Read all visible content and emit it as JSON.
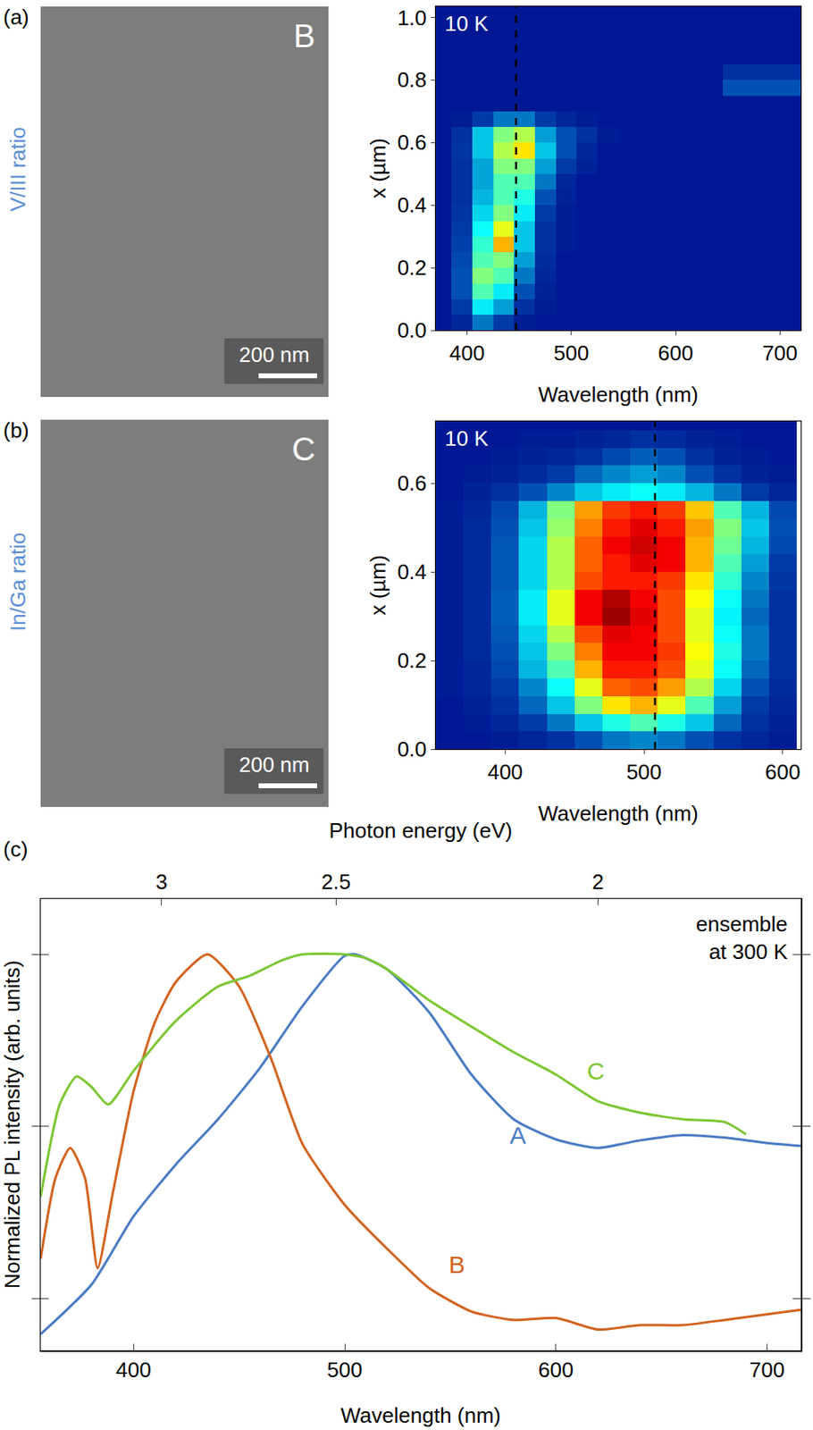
{
  "chart_data": [
    {
      "type": "heatmap",
      "panel": "(a)",
      "row_label": "V/III ratio",
      "image": {
        "label": "B",
        "scale_bar": "200 nm"
      },
      "annotation": "10 K",
      "xlabel": "Wavelength (nm)",
      "ylabel": "x (µm)",
      "xlim": [
        370,
        720
      ],
      "ylim": [
        0,
        1.035
      ],
      "xticks": [
        400,
        500,
        600,
        700
      ],
      "yticks": [
        {
          "value": 0,
          "label": "0.0"
        },
        {
          "value": 0.2,
          "label": "0.2"
        },
        {
          "value": 0.4,
          "label": "0.4"
        },
        {
          "value": 0.6,
          "label": "0.6"
        },
        {
          "value": 0.8,
          "label": "0.8"
        },
        {
          "value": 1,
          "label": "1.0"
        }
      ],
      "grid": false,
      "reference_line": {
        "x": 447,
        "line_style": "dashed"
      },
      "zlim": [
        0,
        1
      ],
      "x": [
        375,
        395,
        415,
        435,
        455,
        475,
        495,
        515,
        535,
        555,
        575,
        595,
        615,
        635,
        655,
        675,
        695,
        715
      ],
      "y": [
        0.025,
        0.075,
        0.125,
        0.175,
        0.225,
        0.275,
        0.325,
        0.375,
        0.425,
        0.475,
        0.525,
        0.575,
        0.625,
        0.675,
        0.725,
        0.775,
        0.825,
        0.875,
        0.925,
        0.975,
        1.025
      ],
      "z": [
        [
          0.05,
          0.08,
          0.2,
          0.12,
          0.06,
          0.05,
          0.05,
          0.05,
          0.05,
          0.05,
          0.05,
          0.05,
          0.05,
          0.05,
          0.05,
          0.05,
          0.05,
          0.05
        ],
        [
          0.05,
          0.12,
          0.35,
          0.25,
          0.1,
          0.06,
          0.05,
          0.05,
          0.05,
          0.05,
          0.05,
          0.05,
          0.05,
          0.05,
          0.05,
          0.05,
          0.05,
          0.05
        ],
        [
          0.05,
          0.15,
          0.45,
          0.35,
          0.15,
          0.07,
          0.05,
          0.05,
          0.05,
          0.05,
          0.05,
          0.05,
          0.05,
          0.05,
          0.05,
          0.05,
          0.05,
          0.05
        ],
        [
          0.05,
          0.15,
          0.5,
          0.45,
          0.2,
          0.08,
          0.05,
          0.05,
          0.05,
          0.05,
          0.05,
          0.05,
          0.05,
          0.05,
          0.05,
          0.05,
          0.05,
          0.05
        ],
        [
          0.05,
          0.14,
          0.45,
          0.5,
          0.25,
          0.09,
          0.05,
          0.05,
          0.05,
          0.05,
          0.05,
          0.05,
          0.05,
          0.05,
          0.05,
          0.05,
          0.05,
          0.05
        ],
        [
          0.05,
          0.13,
          0.42,
          0.7,
          0.3,
          0.1,
          0.06,
          0.05,
          0.05,
          0.05,
          0.05,
          0.05,
          0.05,
          0.05,
          0.05,
          0.05,
          0.05,
          0.05
        ],
        [
          0.05,
          0.12,
          0.38,
          0.6,
          0.3,
          0.1,
          0.06,
          0.05,
          0.05,
          0.05,
          0.05,
          0.05,
          0.05,
          0.05,
          0.05,
          0.05,
          0.05,
          0.05
        ],
        [
          0.05,
          0.11,
          0.32,
          0.5,
          0.35,
          0.12,
          0.06,
          0.05,
          0.05,
          0.05,
          0.05,
          0.05,
          0.05,
          0.05,
          0.05,
          0.05,
          0.05,
          0.05
        ],
        [
          0.05,
          0.1,
          0.28,
          0.45,
          0.4,
          0.15,
          0.07,
          0.05,
          0.05,
          0.05,
          0.05,
          0.05,
          0.05,
          0.05,
          0.05,
          0.05,
          0.05,
          0.05
        ],
        [
          0.05,
          0.1,
          0.26,
          0.45,
          0.45,
          0.2,
          0.08,
          0.05,
          0.05,
          0.05,
          0.05,
          0.05,
          0.05,
          0.05,
          0.05,
          0.05,
          0.05,
          0.05
        ],
        [
          0.05,
          0.1,
          0.26,
          0.5,
          0.5,
          0.25,
          0.12,
          0.07,
          0.05,
          0.05,
          0.05,
          0.05,
          0.05,
          0.05,
          0.05,
          0.05,
          0.05,
          0.05
        ],
        [
          0.05,
          0.11,
          0.3,
          0.55,
          0.65,
          0.3,
          0.15,
          0.08,
          0.05,
          0.05,
          0.05,
          0.05,
          0.05,
          0.05,
          0.05,
          0.05,
          0.05,
          0.05
        ],
        [
          0.05,
          0.1,
          0.3,
          0.5,
          0.55,
          0.25,
          0.15,
          0.1,
          0.06,
          0.05,
          0.05,
          0.05,
          0.05,
          0.05,
          0.05,
          0.05,
          0.05,
          0.05
        ],
        [
          0.05,
          0.06,
          0.12,
          0.2,
          0.2,
          0.12,
          0.08,
          0.06,
          0.05,
          0.05,
          0.05,
          0.05,
          0.05,
          0.05,
          0.05,
          0.05,
          0.05,
          0.05
        ],
        [
          0.05,
          0.05,
          0.05,
          0.05,
          0.05,
          0.05,
          0.05,
          0.05,
          0.05,
          0.05,
          0.05,
          0.05,
          0.05,
          0.05,
          0.05,
          0.05,
          0.05,
          0.05
        ],
        [
          0.05,
          0.05,
          0.05,
          0.05,
          0.05,
          0.05,
          0.05,
          0.05,
          0.05,
          0.05,
          0.05,
          0.05,
          0.05,
          0.05,
          0.15,
          0.15,
          0.15,
          0.15
        ],
        [
          0.05,
          0.05,
          0.05,
          0.05,
          0.05,
          0.05,
          0.05,
          0.05,
          0.05,
          0.05,
          0.05,
          0.05,
          0.05,
          0.05,
          0.1,
          0.1,
          0.1,
          0.1
        ],
        [
          0.05,
          0.05,
          0.05,
          0.05,
          0.05,
          0.05,
          0.05,
          0.05,
          0.05,
          0.05,
          0.05,
          0.05,
          0.05,
          0.05,
          0.05,
          0.05,
          0.05,
          0.05
        ],
        [
          0.05,
          0.05,
          0.05,
          0.05,
          0.05,
          0.05,
          0.05,
          0.05,
          0.05,
          0.05,
          0.05,
          0.05,
          0.05,
          0.05,
          0.05,
          0.05,
          0.05,
          0.05
        ],
        [
          0.05,
          0.05,
          0.05,
          0.05,
          0.05,
          0.05,
          0.05,
          0.05,
          0.05,
          0.05,
          0.05,
          0.05,
          0.05,
          0.05,
          0.05,
          0.05,
          0.05,
          0.05
        ],
        [
          0.05,
          0.05,
          0.05,
          0.05,
          0.05,
          0.05,
          0.05,
          0.05,
          0.05,
          0.05,
          0.05,
          0.05,
          0.05,
          0.05,
          0.05,
          0.05,
          0.05,
          0.05
        ]
      ]
    },
    {
      "type": "heatmap",
      "panel": "(b)",
      "row_label": "In/Ga ratio",
      "image": {
        "label": "C",
        "scale_bar": "200 nm"
      },
      "annotation": "10 K",
      "xlabel": "Wavelength (nm)",
      "ylabel": "x (µm)",
      "xlim": [
        350,
        613
      ],
      "ylim": [
        0,
        0.74
      ],
      "xticks": [
        400,
        500,
        600
      ],
      "yticks": [
        {
          "value": 0,
          "label": "0.0"
        },
        {
          "value": 0.2,
          "label": "0.2"
        },
        {
          "value": 0.4,
          "label": "0.4"
        },
        {
          "value": 0.6,
          "label": "0.6"
        }
      ],
      "grid": false,
      "reference_line": {
        "x": 508,
        "line_style": "dashed"
      },
      "zlim": [
        0,
        1
      ],
      "x": [
        360,
        380,
        400,
        420,
        440,
        460,
        480,
        500,
        520,
        540,
        560,
        580,
        600
      ],
      "y": [
        0.02,
        0.06,
        0.1,
        0.14,
        0.18,
        0.22,
        0.26,
        0.3,
        0.34,
        0.38,
        0.42,
        0.46,
        0.5,
        0.54,
        0.58,
        0.62,
        0.66,
        0.7,
        0.74
      ],
      "z": [
        [
          0.05,
          0.05,
          0.06,
          0.08,
          0.1,
          0.15,
          0.2,
          0.22,
          0.2,
          0.15,
          0.1,
          0.08,
          0.06
        ],
        [
          0.05,
          0.06,
          0.08,
          0.12,
          0.2,
          0.3,
          0.4,
          0.45,
          0.4,
          0.3,
          0.18,
          0.1,
          0.07
        ],
        [
          0.05,
          0.07,
          0.1,
          0.18,
          0.3,
          0.5,
          0.65,
          0.7,
          0.6,
          0.45,
          0.25,
          0.12,
          0.08
        ],
        [
          0.06,
          0.08,
          0.12,
          0.22,
          0.38,
          0.6,
          0.78,
          0.8,
          0.72,
          0.55,
          0.32,
          0.15,
          0.09
        ],
        [
          0.06,
          0.08,
          0.14,
          0.28,
          0.45,
          0.7,
          0.85,
          0.85,
          0.8,
          0.6,
          0.38,
          0.18,
          0.1
        ],
        [
          0.06,
          0.09,
          0.15,
          0.3,
          0.5,
          0.75,
          0.88,
          0.88,
          0.82,
          0.62,
          0.4,
          0.2,
          0.1
        ],
        [
          0.06,
          0.09,
          0.16,
          0.32,
          0.55,
          0.8,
          0.9,
          0.88,
          0.8,
          0.6,
          0.38,
          0.2,
          0.1
        ],
        [
          0.06,
          0.09,
          0.17,
          0.35,
          0.6,
          0.88,
          0.97,
          0.9,
          0.8,
          0.6,
          0.36,
          0.18,
          0.1
        ],
        [
          0.06,
          0.09,
          0.17,
          0.35,
          0.6,
          0.88,
          0.95,
          0.88,
          0.8,
          0.62,
          0.38,
          0.2,
          0.1
        ],
        [
          0.06,
          0.09,
          0.16,
          0.32,
          0.55,
          0.8,
          0.85,
          0.85,
          0.82,
          0.65,
          0.42,
          0.22,
          0.11
        ],
        [
          0.06,
          0.09,
          0.16,
          0.32,
          0.55,
          0.78,
          0.85,
          0.9,
          0.88,
          0.7,
          0.45,
          0.25,
          0.12
        ],
        [
          0.06,
          0.09,
          0.16,
          0.32,
          0.55,
          0.78,
          0.88,
          0.92,
          0.88,
          0.7,
          0.48,
          0.28,
          0.14
        ],
        [
          0.06,
          0.09,
          0.15,
          0.3,
          0.52,
          0.75,
          0.85,
          0.9,
          0.85,
          0.72,
          0.5,
          0.3,
          0.15
        ],
        [
          0.06,
          0.08,
          0.14,
          0.28,
          0.5,
          0.72,
          0.82,
          0.85,
          0.82,
          0.68,
          0.45,
          0.28,
          0.14
        ],
        [
          0.05,
          0.07,
          0.1,
          0.15,
          0.22,
          0.3,
          0.35,
          0.38,
          0.35,
          0.28,
          0.2,
          0.12,
          0.08
        ],
        [
          0.05,
          0.06,
          0.07,
          0.09,
          0.12,
          0.18,
          0.22,
          0.25,
          0.22,
          0.15,
          0.1,
          0.07,
          0.06
        ],
        [
          0.05,
          0.05,
          0.06,
          0.07,
          0.08,
          0.1,
          0.14,
          0.17,
          0.15,
          0.1,
          0.07,
          0.06,
          0.05
        ],
        [
          0.05,
          0.05,
          0.05,
          0.06,
          0.06,
          0.07,
          0.08,
          0.1,
          0.09,
          0.07,
          0.06,
          0.05,
          0.05
        ],
        [
          0.05,
          0.05,
          0.05,
          0.05,
          0.05,
          0.05,
          0.05,
          0.05,
          0.05,
          0.05,
          0.05,
          0.05,
          0.05
        ]
      ]
    },
    {
      "type": "line",
      "panel": "(c)",
      "xlabel": "Wavelength (nm)",
      "x2label": "Photon energy (eV)",
      "ylabel": "Normalized PL intensity (arb. units)",
      "annotation": "ensemble\nat 300 K",
      "log": "y",
      "tick_labels": "x",
      "grid": false,
      "xlim": [
        356,
        716
      ],
      "ylim": [
        0.005,
        2.1
      ],
      "xticks": [
        400,
        500,
        600,
        700
      ],
      "x2ticks": [
        3,
        2.5,
        2
      ],
      "yticks": [
        0.01,
        0.1,
        1
      ],
      "series": [
        {
          "name": "A",
          "color": "#4a7bc4",
          "line_style": "solid",
          "label_at": {
            "x": 582,
            "y": 0.089
          },
          "x": [
            356,
            380,
            400,
            420,
            440,
            460,
            480,
            500,
            505,
            520,
            540,
            560,
            580,
            600,
            620,
            640,
            660,
            680,
            700,
            716
          ],
          "values": [
            0.0062,
            0.012,
            0.03,
            0.06,
            0.11,
            0.22,
            0.5,
            0.98,
            1.0,
            0.82,
            0.46,
            0.2,
            0.11,
            0.084,
            0.075,
            0.083,
            0.089,
            0.086,
            0.08,
            0.077
          ]
        },
        {
          "name": "B",
          "color": "#d2631f",
          "line_style": "solid",
          "label_at": {
            "x": 553,
            "y": 0.0158
          },
          "x": [
            356,
            363,
            370,
            377,
            383,
            390,
            400,
            410,
            420,
            435,
            450,
            465,
            480,
            500,
            520,
            540,
            560,
            580,
            600,
            620,
            640,
            660,
            680,
            700,
            716
          ],
          "values": [
            0.017,
            0.05,
            0.075,
            0.05,
            0.015,
            0.04,
            0.16,
            0.4,
            0.69,
            1.0,
            0.65,
            0.25,
            0.079,
            0.035,
            0.0195,
            0.0115,
            0.0084,
            0.0075,
            0.0077,
            0.0066,
            0.007,
            0.007,
            0.0075,
            0.0081,
            0.0086
          ]
        },
        {
          "name": "C",
          "color": "#7cc733",
          "line_style": "solid",
          "label_at": {
            "x": 619,
            "y": 0.21
          },
          "x": [
            356,
            365,
            373,
            380,
            388,
            400,
            420,
            440,
            455,
            470,
            480,
            500,
            510,
            520,
            540,
            560,
            580,
            600,
            620,
            640,
            660,
            680,
            690
          ],
          "values": [
            0.039,
            0.134,
            0.195,
            0.17,
            0.134,
            0.21,
            0.41,
            0.65,
            0.75,
            0.92,
            1.0,
            1.0,
            0.95,
            0.82,
            0.54,
            0.38,
            0.27,
            0.2,
            0.14,
            0.12,
            0.11,
            0.106,
            0.09
          ]
        }
      ]
    }
  ]
}
